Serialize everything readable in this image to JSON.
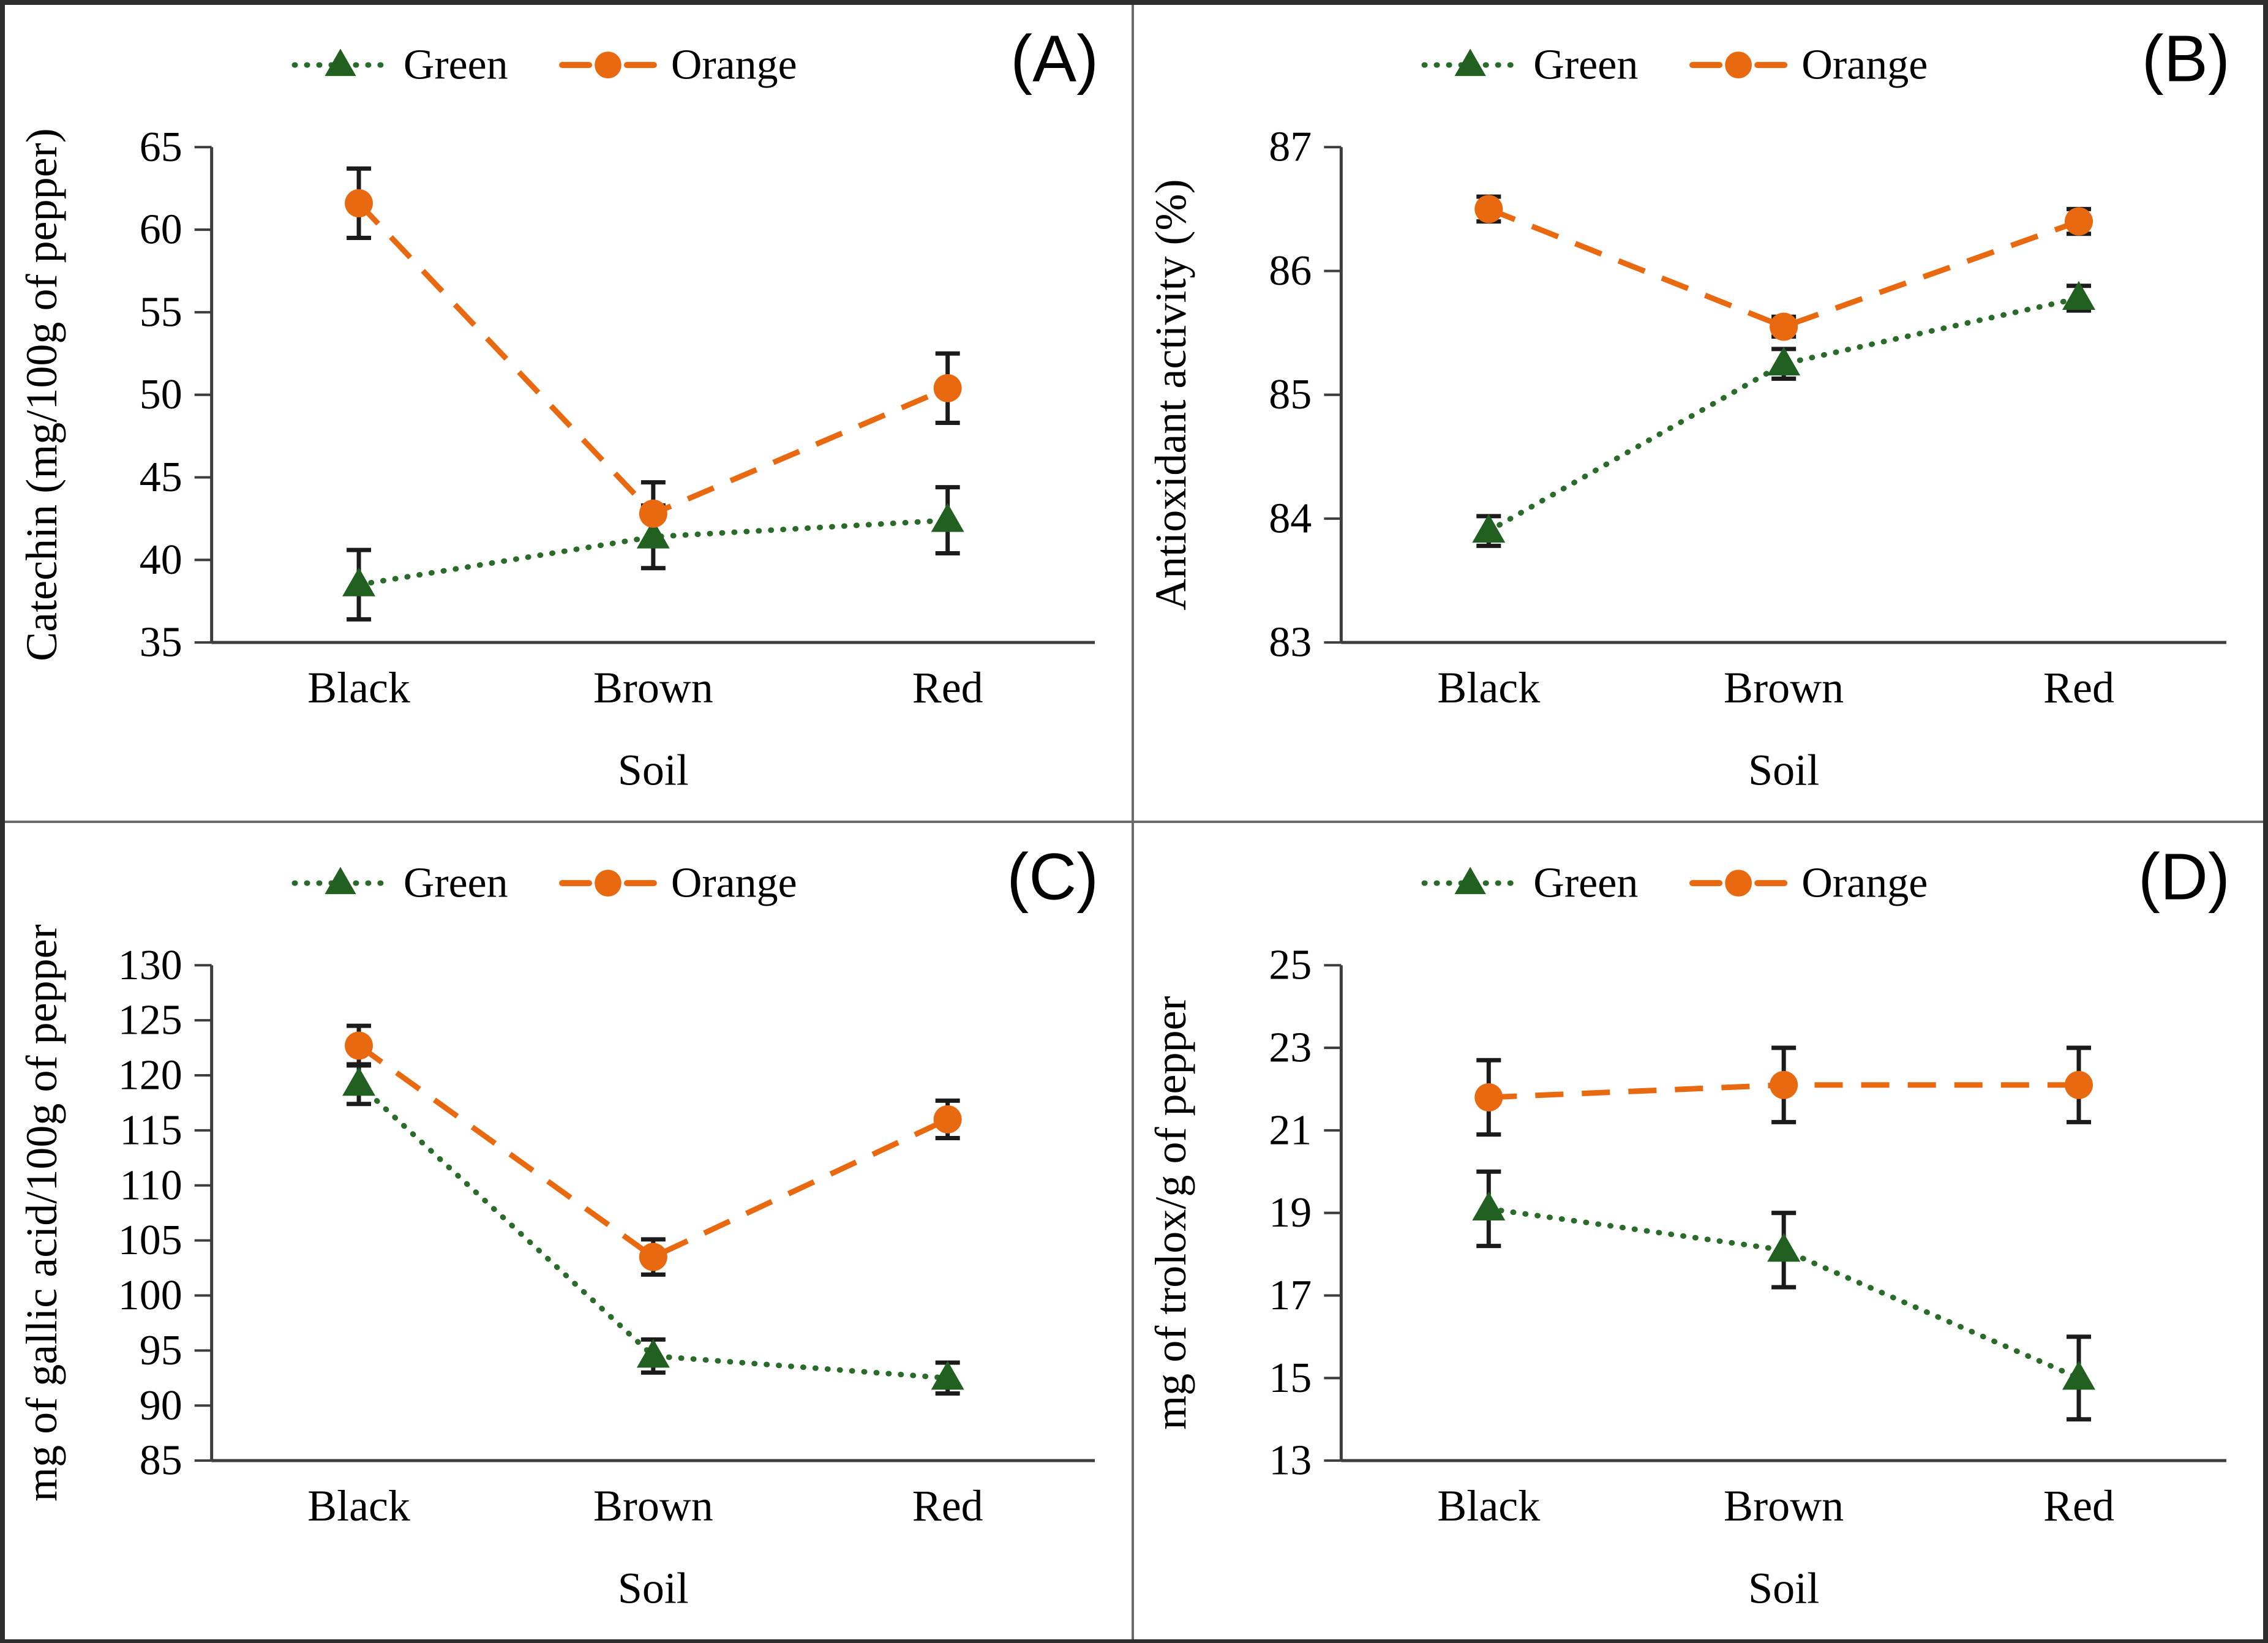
{
  "figure_title": "",
  "x_axis_title": "Soil",
  "categories": [
    "Black",
    "Brown",
    "Red"
  ],
  "legend": [
    "Green",
    "Orange"
  ],
  "colors": {
    "green_series": "#2A6B2A",
    "green_marker": "#226022",
    "orange_series": "#E8690F",
    "error_bar": "#1B1B1B",
    "axis": "#3D3D3D",
    "panel_divider": "#6A6A6A",
    "outer_border": "#2E2E2E"
  },
  "chart_data": [
    {
      "type": "line",
      "panel_label": "(A)",
      "title": "",
      "xlabel": "Soil",
      "ylabel": "Catechin (mg/100g of pepper)",
      "categories": [
        "Black",
        "Brown",
        "Red"
      ],
      "ylim": [
        35,
        65
      ],
      "ytick_step": 5,
      "grid": false,
      "legend_position": "top",
      "axis_color": "#3D3D3D",
      "error_color": "#1B1B1B",
      "series": [
        {
          "name": "Green",
          "color": "#2A6B2A",
          "marker_color": "#226022",
          "marker": "triangle",
          "line_style": "dotted",
          "values": [
            38.5,
            41.4,
            42.4
          ],
          "errors": [
            2.1,
            1.9,
            2.0
          ]
        },
        {
          "name": "Orange",
          "color": "#E8690F",
          "marker_color": "#E8690F",
          "marker": "circle",
          "line_style": "dashed",
          "values": [
            61.6,
            42.8,
            50.4
          ],
          "errors": [
            2.1,
            1.9,
            2.1
          ]
        }
      ]
    },
    {
      "type": "line",
      "panel_label": "(B)",
      "title": "",
      "xlabel": "Soil",
      "ylabel": "Antioxidant activity (%)",
      "categories": [
        "Black",
        "Brown",
        "Red"
      ],
      "ylim": [
        83,
        87
      ],
      "ytick_step": 1,
      "grid": false,
      "legend_position": "top",
      "axis_color": "#3D3D3D",
      "error_color": "#1B1B1B",
      "series": [
        {
          "name": "Green",
          "color": "#2A6B2A",
          "marker_color": "#226022",
          "marker": "triangle",
          "line_style": "dotted",
          "values": [
            83.9,
            85.25,
            85.78
          ],
          "errors": [
            0.12,
            0.12,
            0.1
          ]
        },
        {
          "name": "Orange",
          "color": "#E8690F",
          "marker_color": "#E8690F",
          "marker": "circle",
          "line_style": "dashed",
          "values": [
            86.5,
            85.55,
            86.4
          ],
          "errors": [
            0.1,
            0.08,
            0.1
          ]
        }
      ]
    },
    {
      "type": "line",
      "panel_label": "(C)",
      "title": "",
      "xlabel": "Soil",
      "ylabel": "mg of gallic acid/100g of pepper",
      "categories": [
        "Black",
        "Brown",
        "Red"
      ],
      "ylim": [
        85,
        130
      ],
      "ytick_step": 5,
      "grid": false,
      "legend_position": "top",
      "axis_color": "#3D3D3D",
      "error_color": "#1B1B1B",
      "series": [
        {
          "name": "Green",
          "color": "#2A6B2A",
          "marker_color": "#226022",
          "marker": "triangle",
          "line_style": "dotted",
          "values": [
            119.2,
            94.5,
            92.5
          ],
          "errors": [
            1.8,
            1.5,
            1.4
          ]
        },
        {
          "name": "Orange",
          "color": "#E8690F",
          "marker_color": "#E8690F",
          "marker": "circle",
          "line_style": "dashed",
          "values": [
            122.7,
            103.5,
            116.0
          ],
          "errors": [
            1.8,
            1.6,
            1.7
          ]
        }
      ]
    },
    {
      "type": "line",
      "panel_label": "(D)",
      "title": "",
      "xlabel": "Soil",
      "ylabel": "mg of trolox/g of pepper",
      "categories": [
        "Black",
        "Brown",
        "Red"
      ],
      "ylim": [
        13,
        25
      ],
      "ytick_step": 2,
      "grid": false,
      "legend_position": "top",
      "axis_color": "#3D3D3D",
      "error_color": "#1B1B1B",
      "series": [
        {
          "name": "Green",
          "color": "#2A6B2A",
          "marker_color": "#226022",
          "marker": "triangle",
          "line_style": "dotted",
          "values": [
            19.1,
            18.1,
            15.0
          ],
          "errors": [
            0.9,
            0.9,
            1.0
          ]
        },
        {
          "name": "Orange",
          "color": "#E8690F",
          "marker_color": "#E8690F",
          "marker": "circle",
          "line_style": "dashed",
          "values": [
            21.8,
            22.1,
            22.1
          ],
          "errors": [
            0.9,
            0.9,
            0.9
          ]
        }
      ]
    }
  ]
}
